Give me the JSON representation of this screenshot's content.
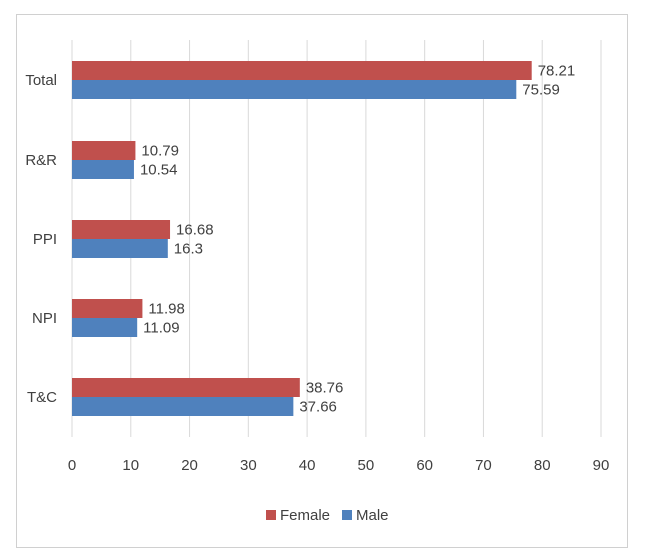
{
  "chart_data": {
    "type": "bar",
    "orientation": "horizontal",
    "categories": [
      "Total",
      "R&R",
      "PPI",
      "NPI",
      "T&C"
    ],
    "series": [
      {
        "name": "Female",
        "color": "#c0504d",
        "values": [
          78.21,
          10.79,
          16.68,
          11.98,
          38.76
        ]
      },
      {
        "name": "Male",
        "color": "#4f81bd",
        "values": [
          75.59,
          10.54,
          16.3,
          11.09,
          37.66
        ]
      }
    ],
    "x_ticks": [
      "0",
      "10",
      "20",
      "30",
      "40",
      "50",
      "60",
      "70",
      "80",
      "90"
    ],
    "xlim": [
      0,
      90
    ],
    "grid": true,
    "legend": "bottom"
  }
}
